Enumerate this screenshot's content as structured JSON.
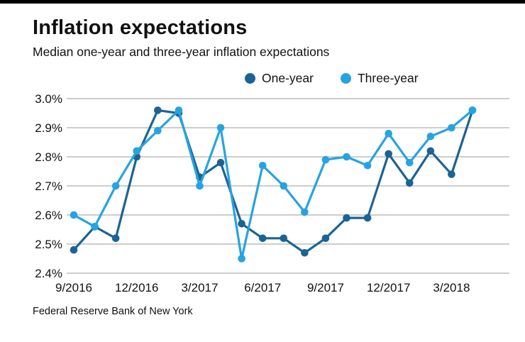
{
  "header": {
    "title": "Inflation expectations",
    "subtitle": "Median one-year and three-year inflation expectations"
  },
  "legend": [
    {
      "label": "One-year",
      "color": "#1b6394"
    },
    {
      "label": "Three-year",
      "color": "#27a3e1"
    }
  ],
  "source": "Federal Reserve Bank of New York",
  "chart_data": {
    "type": "line",
    "title": "Inflation expectations",
    "subtitle": "Median one-year and three-year inflation expectations",
    "xlabel": "",
    "ylabel": "",
    "grid": "horizontal",
    "legend_position": "top",
    "ylim": [
      2.4,
      3.0
    ],
    "y_ticks": [
      3.0,
      2.9,
      2.8,
      2.7,
      2.6,
      2.5,
      2.4
    ],
    "y_tick_suffix": "%",
    "x": [
      "9/2016",
      "10/2016",
      "11/2016",
      "12/2016",
      "1/2017",
      "2/2017",
      "3/2017",
      "4/2017",
      "5/2017",
      "6/2017",
      "7/2017",
      "8/2017",
      "9/2017",
      "10/2017",
      "11/2017",
      "12/2017",
      "1/2018",
      "2/2018",
      "3/2018",
      "4/2018"
    ],
    "x_tick_indices": [
      0,
      3,
      6,
      9,
      12,
      15,
      18
    ],
    "series": [
      {
        "id": "one-year",
        "name": "One-year",
        "color": "#1b6394",
        "values": [
          2.48,
          2.56,
          2.52,
          2.8,
          2.96,
          2.95,
          2.73,
          2.78,
          2.57,
          2.52,
          2.52,
          2.47,
          2.52,
          2.59,
          2.59,
          2.81,
          2.71,
          2.82,
          2.74,
          2.96
        ]
      },
      {
        "id": "three-year",
        "name": "Three-year",
        "color": "#27a3e1",
        "values": [
          2.6,
          2.56,
          2.7,
          2.82,
          2.89,
          2.96,
          2.7,
          2.9,
          2.45,
          2.77,
          2.7,
          2.61,
          2.79,
          2.8,
          2.77,
          2.88,
          2.78,
          2.87,
          2.9,
          2.96
        ]
      }
    ]
  }
}
